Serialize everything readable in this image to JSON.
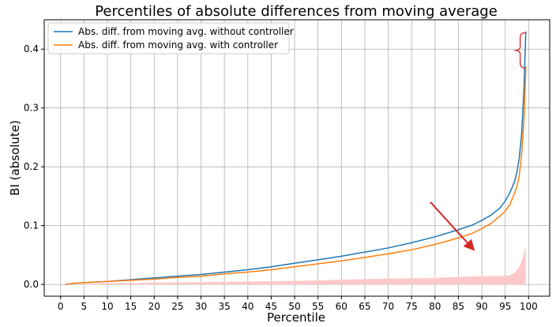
{
  "chart_data": {
    "type": "line",
    "title": "Percentiles of absolute differences from moving average",
    "xlabel": "Percentile",
    "ylabel": "BI (absolute)",
    "xlim": [
      -3.5,
      104.5
    ],
    "ylim": [
      -0.02,
      0.45
    ],
    "xticks": [
      0,
      5,
      10,
      15,
      20,
      25,
      30,
      35,
      40,
      45,
      50,
      55,
      60,
      65,
      70,
      75,
      80,
      85,
      90,
      95,
      100
    ],
    "yticks": [
      0.0,
      0.1,
      0.2,
      0.3,
      0.4
    ],
    "ytick_labels": [
      "0.0",
      "0.1",
      "0.2",
      "0.3",
      "0.4"
    ],
    "grid": true,
    "legend_position": "top-left",
    "series": [
      {
        "name": "Abs. diff. from moving avg. without controller",
        "color": "#1f77b4",
        "x": [
          1,
          3,
          5,
          10,
          15,
          20,
          25,
          30,
          35,
          40,
          45,
          50,
          55,
          60,
          65,
          70,
          75,
          80,
          85,
          88,
          90,
          92,
          94,
          95,
          96,
          97,
          97.5,
          98,
          98.5,
          99,
          99.2,
          99.4
        ],
        "y": [
          0.0,
          0.002,
          0.003,
          0.005,
          0.008,
          0.011,
          0.014,
          0.017,
          0.021,
          0.025,
          0.03,
          0.036,
          0.042,
          0.048,
          0.055,
          0.062,
          0.071,
          0.081,
          0.093,
          0.101,
          0.109,
          0.118,
          0.131,
          0.142,
          0.156,
          0.175,
          0.191,
          0.215,
          0.255,
          0.33,
          0.38,
          0.43
        ]
      },
      {
        "name": "Abs. diff. from moving avg. with controller",
        "color": "#ff7f0e",
        "x": [
          1,
          3,
          5,
          10,
          15,
          20,
          25,
          30,
          35,
          40,
          45,
          50,
          55,
          60,
          65,
          70,
          75,
          80,
          85,
          88,
          90,
          92,
          94,
          95,
          96,
          97,
          97.5,
          98,
          98.5,
          99,
          99.2,
          99.4
        ],
        "y": [
          0.0,
          0.002,
          0.003,
          0.005,
          0.007,
          0.009,
          0.012,
          0.014,
          0.018,
          0.021,
          0.025,
          0.03,
          0.035,
          0.04,
          0.046,
          0.052,
          0.059,
          0.068,
          0.079,
          0.087,
          0.095,
          0.104,
          0.117,
          0.125,
          0.136,
          0.155,
          0.167,
          0.185,
          0.22,
          0.28,
          0.32,
          0.37
        ]
      }
    ],
    "difference_band": {
      "color": "#ffc9c9",
      "x": [
        1,
        10,
        20,
        30,
        40,
        50,
        60,
        70,
        80,
        85,
        90,
        93,
        95,
        96,
        97,
        98,
        98.5,
        99,
        99.4
      ],
      "y": [
        0.0,
        0.002,
        0.003,
        0.004,
        0.005,
        0.006,
        0.008,
        0.01,
        0.011,
        0.013,
        0.014,
        0.014,
        0.014,
        0.016,
        0.02,
        0.03,
        0.04,
        0.052,
        0.065
      ]
    },
    "annotations": [
      {
        "type": "arrow",
        "color": "#d62728",
        "from": [
          79,
          0.14
        ],
        "to": [
          88.5,
          0.057
        ]
      },
      {
        "type": "brace",
        "color": "#d62728",
        "x": 98.2,
        "y_top": 0.428,
        "y_bottom": 0.368
      }
    ]
  }
}
